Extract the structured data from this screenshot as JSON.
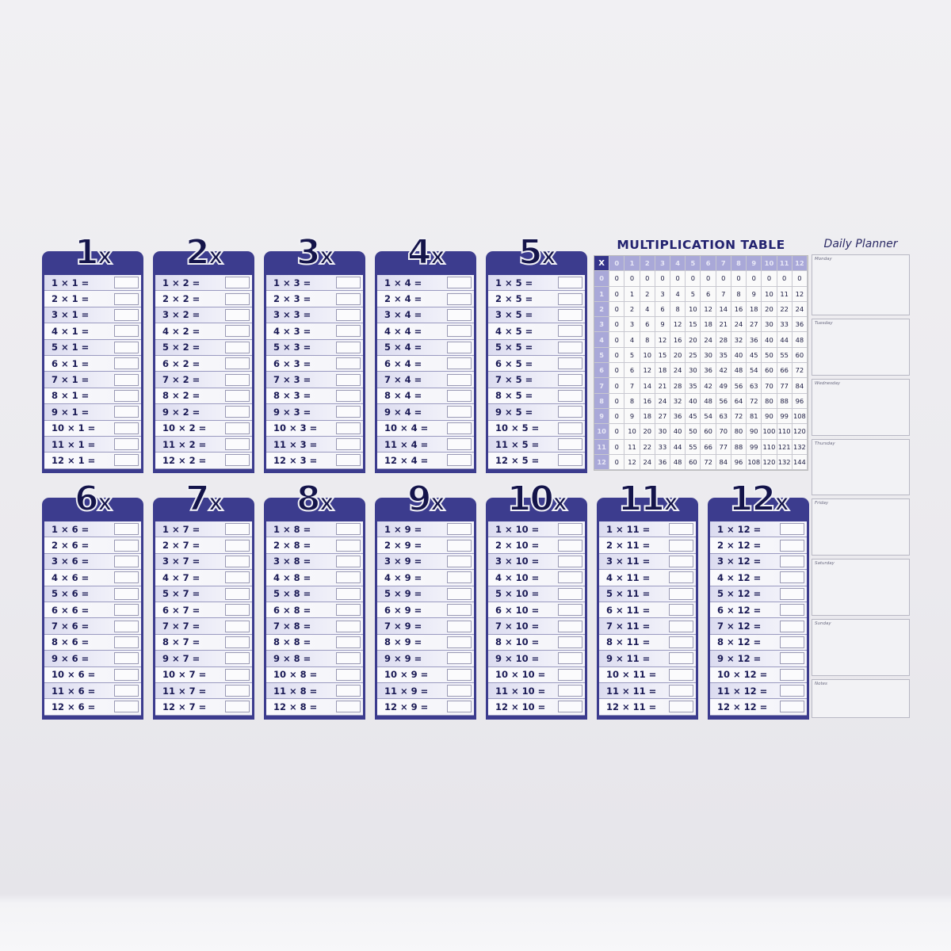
{
  "cards": [
    {
      "title": "1",
      "rows": [
        "1 × 1 =",
        "2 × 1 =",
        "3 × 1 =",
        "4 × 1 =",
        "5 × 1 =",
        "6 × 1 =",
        "7 × 1 =",
        "8 × 1 =",
        "9 × 1 =",
        "10 × 1 =",
        "11 × 1 =",
        "12 × 1 ="
      ]
    },
    {
      "title": "2",
      "rows": [
        "1 × 2 =",
        "2 × 2 =",
        "3 × 2 =",
        "4 × 2 =",
        "5 × 2 =",
        "6 × 2 =",
        "7 × 2 =",
        "8 × 2 =",
        "9 × 2 =",
        "10 × 2 =",
        "11 × 2 =",
        "12 × 2 ="
      ]
    },
    {
      "title": "3",
      "rows": [
        "1 × 3 =",
        "2 × 3 =",
        "3 × 3 =",
        "4 × 3 =",
        "5 × 3 =",
        "6 × 3 =",
        "7 × 3 =",
        "8 × 3 =",
        "9 × 3 =",
        "10 × 3 =",
        "11 × 3 =",
        "12 × 3 ="
      ]
    },
    {
      "title": "4",
      "rows": [
        "1 × 4 =",
        "2 × 4 =",
        "3 × 4 =",
        "4 × 4 =",
        "5 × 4 =",
        "6 × 4 =",
        "7 × 4 =",
        "8 × 4 =",
        "9 × 4 =",
        "10 × 4 =",
        "11 × 4 =",
        "12 × 4 ="
      ]
    },
    {
      "title": "5",
      "rows": [
        "1 × 5 =",
        "2 × 5 =",
        "3 × 5 =",
        "4 × 5 =",
        "5 × 5 =",
        "6 × 5 =",
        "7 × 5 =",
        "8 × 5 =",
        "9 × 5 =",
        "10 × 5 =",
        "11 × 5 =",
        "12 × 5 ="
      ]
    },
    {
      "title": "6",
      "rows": [
        "1 × 6 =",
        "2 × 6 =",
        "3 × 6 =",
        "4 × 6 =",
        "5 × 6 =",
        "6 × 6 =",
        "7 × 6 =",
        "8 × 6 =",
        "9 × 6 =",
        "10 × 6 =",
        "11 × 6 =",
        "12 × 6 ="
      ]
    },
    {
      "title": "7",
      "rows": [
        "1 × 7 =",
        "2 × 7 =",
        "3 × 7 =",
        "4 × 7 =",
        "5 × 7 =",
        "6 × 7 =",
        "7 × 7 =",
        "8 × 7 =",
        "9 × 7 =",
        "10 × 7 =",
        "11 × 7 =",
        "12 × 7 ="
      ]
    },
    {
      "title": "8",
      "rows": [
        "1 × 8 =",
        "2 × 8 =",
        "3 × 8 =",
        "4 × 8 =",
        "5 × 8 =",
        "6 × 8 =",
        "7 × 8 =",
        "8 × 8 =",
        "9 × 8 =",
        "10 × 8 =",
        "11 × 8 =",
        "12 × 8 ="
      ]
    },
    {
      "title": "9",
      "rows": [
        "1 × 9 =",
        "2 × 9 =",
        "3 × 9 =",
        "4 × 9 =",
        "5 × 9 =",
        "6 × 9 =",
        "7 × 9 =",
        "8 × 9 =",
        "9 × 9 =",
        "10 × 9 =",
        "11 × 9 =",
        "12 × 9 ="
      ]
    },
    {
      "title": "10",
      "rows": [
        "1 × 10 =",
        "2 × 10 =",
        "3 × 10 =",
        "4 × 10 =",
        "5 × 10 =",
        "6 × 10 =",
        "7 × 10 =",
        "8 × 10 =",
        "9 × 10 =",
        "10 × 10 =",
        "11 × 10 =",
        "12 × 10 ="
      ]
    },
    {
      "title": "11",
      "rows": [
        "1 × 11 =",
        "2 × 11 =",
        "3 × 11 =",
        "4 × 11 =",
        "5 × 11 =",
        "6 × 11 =",
        "7 × 11 =",
        "8 × 11 =",
        "9 × 11 =",
        "10 × 11 =",
        "11 × 11 =",
        "12 × 11 ="
      ]
    },
    {
      "title": "12",
      "rows": [
        "1 × 12 =",
        "2 × 12 =",
        "3 × 12 =",
        "4 × 12 =",
        "5 × 12 =",
        "6 × 12 =",
        "7 × 12 =",
        "8 × 12 =",
        "9 × 12 =",
        "10 × 12 =",
        "11 × 12 =",
        "12 × 12 ="
      ]
    }
  ],
  "title_suffix": "x",
  "multiplication_table": {
    "title": "MULTIPLICATION TABLE",
    "corner": "X",
    "headers": [
      "0",
      "1",
      "2",
      "3",
      "4",
      "5",
      "6",
      "7",
      "8",
      "9",
      "10",
      "11",
      "12"
    ],
    "rows": [
      [
        "0",
        "0",
        "0",
        "0",
        "0",
        "0",
        "0",
        "0",
        "0",
        "0",
        "0",
        "0",
        "0"
      ],
      [
        "0",
        "1",
        "2",
        "3",
        "4",
        "5",
        "6",
        "7",
        "8",
        "9",
        "10",
        "11",
        "12"
      ],
      [
        "0",
        "2",
        "4",
        "6",
        "8",
        "10",
        "12",
        "14",
        "16",
        "18",
        "20",
        "22",
        "24"
      ],
      [
        "0",
        "3",
        "6",
        "9",
        "12",
        "15",
        "18",
        "21",
        "24",
        "27",
        "30",
        "33",
        "36"
      ],
      [
        "0",
        "4",
        "8",
        "12",
        "16",
        "20",
        "24",
        "28",
        "32",
        "36",
        "40",
        "44",
        "48"
      ],
      [
        "0",
        "5",
        "10",
        "15",
        "20",
        "25",
        "30",
        "35",
        "40",
        "45",
        "50",
        "55",
        "60"
      ],
      [
        "0",
        "6",
        "12",
        "18",
        "24",
        "30",
        "36",
        "42",
        "48",
        "54",
        "60",
        "66",
        "72"
      ],
      [
        "0",
        "7",
        "14",
        "21",
        "28",
        "35",
        "42",
        "49",
        "56",
        "63",
        "70",
        "77",
        "84"
      ],
      [
        "0",
        "8",
        "16",
        "24",
        "32",
        "40",
        "48",
        "56",
        "64",
        "72",
        "80",
        "88",
        "96"
      ],
      [
        "0",
        "9",
        "18",
        "27",
        "36",
        "45",
        "54",
        "63",
        "72",
        "81",
        "90",
        "99",
        "108"
      ],
      [
        "0",
        "10",
        "20",
        "30",
        "40",
        "50",
        "60",
        "70",
        "80",
        "90",
        "100",
        "110",
        "120"
      ],
      [
        "0",
        "11",
        "22",
        "33",
        "44",
        "55",
        "66",
        "77",
        "88",
        "99",
        "110",
        "121",
        "132"
      ],
      [
        "0",
        "12",
        "24",
        "36",
        "48",
        "60",
        "72",
        "84",
        "96",
        "108",
        "120",
        "132",
        "144"
      ]
    ]
  },
  "planner": {
    "title": "Daily Planner",
    "sections": [
      "Monday",
      "Tuesday",
      "Wednesday",
      "Thursday",
      "Friday",
      "Saturday",
      "Sunday",
      "Notes"
    ]
  },
  "colors": {
    "navy": "#3c3c8e",
    "header_light": "#a9a8d8",
    "text": "#1a1a55"
  }
}
